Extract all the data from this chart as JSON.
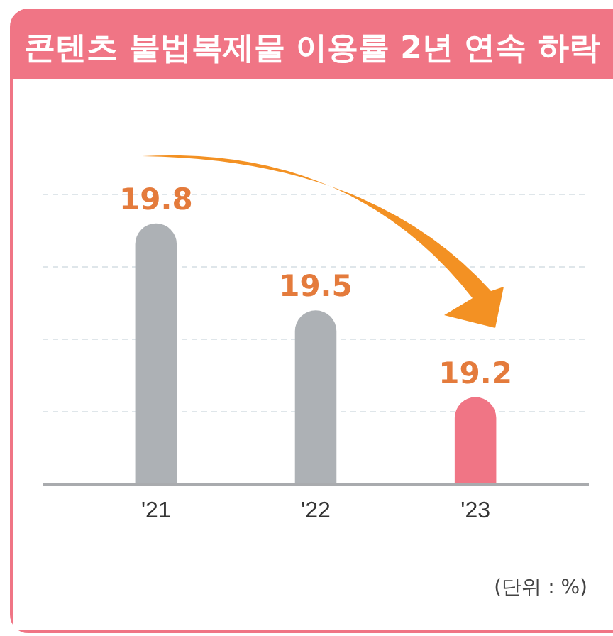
{
  "chart_data": {
    "type": "bar",
    "title": "콘텐츠 불법복제물 이용률 2년 연속 하락",
    "categories": [
      "'21",
      "'22",
      "'23"
    ],
    "values": [
      19.8,
      19.5,
      19.2
    ],
    "colors": [
      "#adb1b5",
      "#adb1b5",
      "#f07585"
    ],
    "ylim": [
      18.9,
      19.9
    ],
    "yticks": [
      {
        "value": 19.15,
        "label": null
      },
      {
        "value": 19.4,
        "label": null
      },
      {
        "value": 19.65,
        "label": null
      },
      {
        "value": 19.9,
        "label": null
      }
    ],
    "grid": "y",
    "tick_labels": "x",
    "data_labels": true,
    "annotations": [
      "(단위 : %)"
    ]
  }
}
